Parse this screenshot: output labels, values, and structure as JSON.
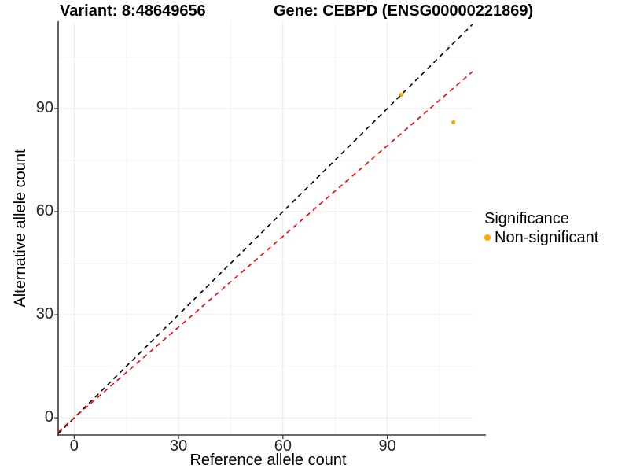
{
  "chart_data": {
    "type": "scatter",
    "titles": {
      "variant": "Variant: 8:48649656",
      "gene": "Gene: CEBPD (ENSG00000221869)"
    },
    "xlabel": "Reference allele count",
    "ylabel": "Alternative allele count",
    "xlim": [
      -4.6,
      114.5
    ],
    "ylim": [
      -5.0,
      115.4
    ],
    "x_major_ticks": [
      0,
      30,
      60,
      90
    ],
    "y_major_ticks": [
      0,
      30,
      60,
      90
    ],
    "x_minor_ticks": [
      15,
      45,
      75,
      105
    ],
    "y_minor_ticks": [
      15,
      45,
      75,
      105
    ],
    "grid": true,
    "points": [
      {
        "x": 94,
        "y": 94,
        "significance": "Non-significant"
      },
      {
        "x": 109,
        "y": 86,
        "significance": "Non-significant"
      }
    ],
    "ab_lines": [
      {
        "name": "identity-line",
        "slope": 1,
        "intercept": 0,
        "color": "#000000",
        "style": "dashed"
      },
      {
        "name": "expected-ratio-line",
        "slope": 0.88,
        "intercept": 0,
        "color": "#FF0000",
        "style": "dashed"
      }
    ],
    "legend": {
      "title": "Significance",
      "position": "right",
      "entries": [
        {
          "label": "Non-significant",
          "color": "#FFA500"
        }
      ]
    },
    "colors": {
      "point": "#FFA500",
      "grid_major": "#E9E9E9",
      "grid_minor": "#F4F4F4",
      "axis_line": "#3C3C3C",
      "tick_mark": "#333333",
      "tick_text": "#262626"
    }
  }
}
